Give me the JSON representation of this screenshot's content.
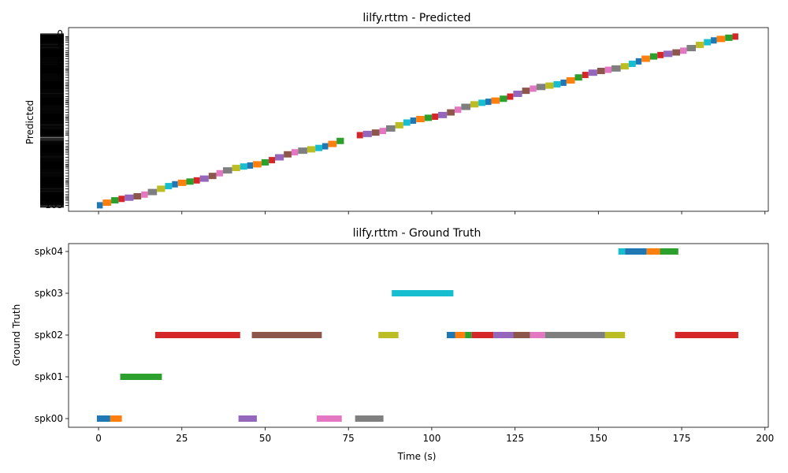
{
  "chart_data": [
    {
      "type": "timeline",
      "title": "lilfy.rttm - Predicted",
      "ylabel": "Predicted",
      "xlim": [
        -9,
        201
      ],
      "x_ticks": [
        0,
        25,
        50,
        75,
        100,
        125,
        150,
        175,
        200
      ],
      "x_tick_labels_shown": false,
      "y_tick_labels_overlapping": true,
      "y_tick_labels_top": [
        "0",
        "1",
        "2",
        "3",
        "4",
        "5",
        "6",
        "7",
        "8",
        "9"
      ],
      "y_tick_labels_bottom": [
        "105",
        "103"
      ],
      "trend": {
        "start": 0,
        "end": 192,
        "approx_segment_length": 2.2,
        "gap": [
          72.5,
          77.5
        ],
        "y_at_start_frac": 0.03,
        "y_at_end_frac": 0.96
      }
    },
    {
      "type": "timeline",
      "title": "lilfy.rttm - Ground Truth",
      "xlabel": "Time (s)",
      "ylabel": "Ground Truth",
      "xlim": [
        -9,
        201
      ],
      "x_ticks": [
        0,
        25,
        50,
        75,
        100,
        125,
        150,
        175,
        200
      ],
      "speakers": [
        "spk00",
        "spk01",
        "spk02",
        "spk03",
        "spk04"
      ],
      "segments": [
        {
          "speaker": "spk00",
          "start": -0.5,
          "end": 3.5,
          "color": "#1f77b4"
        },
        {
          "speaker": "spk00",
          "start": 3.5,
          "end": 7,
          "color": "#ff7f0e"
        },
        {
          "speaker": "spk00",
          "start": 42,
          "end": 47.5,
          "color": "#9467bd"
        },
        {
          "speaker": "spk00",
          "start": 65.5,
          "end": 73,
          "color": "#e377c2"
        },
        {
          "speaker": "spk00",
          "start": 77,
          "end": 85.5,
          "color": "#7f7f7f"
        },
        {
          "speaker": "spk01",
          "start": 6.5,
          "end": 19,
          "color": "#2ca02c"
        },
        {
          "speaker": "spk02",
          "start": 17,
          "end": 42.5,
          "color": "#d62728"
        },
        {
          "speaker": "spk02",
          "start": 46,
          "end": 67,
          "color": "#8c564b"
        },
        {
          "speaker": "spk02",
          "start": 84,
          "end": 90,
          "color": "#bcbd22"
        },
        {
          "speaker": "spk02",
          "start": 104.5,
          "end": 107,
          "color": "#1f77b4"
        },
        {
          "speaker": "spk02",
          "start": 107,
          "end": 110,
          "color": "#ff7f0e"
        },
        {
          "speaker": "spk02",
          "start": 110,
          "end": 112,
          "color": "#2ca02c"
        },
        {
          "speaker": "spk02",
          "start": 112,
          "end": 118.5,
          "color": "#d62728"
        },
        {
          "speaker": "spk02",
          "start": 118.5,
          "end": 124.5,
          "color": "#9467bd"
        },
        {
          "speaker": "spk02",
          "start": 124.5,
          "end": 129.5,
          "color": "#8c564b"
        },
        {
          "speaker": "spk02",
          "start": 129.5,
          "end": 134,
          "color": "#e377c2"
        },
        {
          "speaker": "spk02",
          "start": 134,
          "end": 152,
          "color": "#7f7f7f"
        },
        {
          "speaker": "spk02",
          "start": 152,
          "end": 158,
          "color": "#bcbd22"
        },
        {
          "speaker": "spk02",
          "start": 173,
          "end": 192,
          "color": "#d62728"
        },
        {
          "speaker": "spk03",
          "start": 88,
          "end": 106.5,
          "color": "#17becf"
        },
        {
          "speaker": "spk04",
          "start": 156,
          "end": 158,
          "color": "#17becf"
        },
        {
          "speaker": "spk04",
          "start": 158,
          "end": 164.5,
          "color": "#1f77b4"
        },
        {
          "speaker": "spk04",
          "start": 164.5,
          "end": 168.5,
          "color": "#ff7f0e"
        },
        {
          "speaker": "spk04",
          "start": 168.5,
          "end": 174,
          "color": "#2ca02c"
        }
      ]
    }
  ],
  "palette": [
    "#1f77b4",
    "#ff7f0e",
    "#2ca02c",
    "#d62728",
    "#9467bd",
    "#8c564b",
    "#e377c2",
    "#7f7f7f",
    "#bcbd22",
    "#17becf"
  ]
}
